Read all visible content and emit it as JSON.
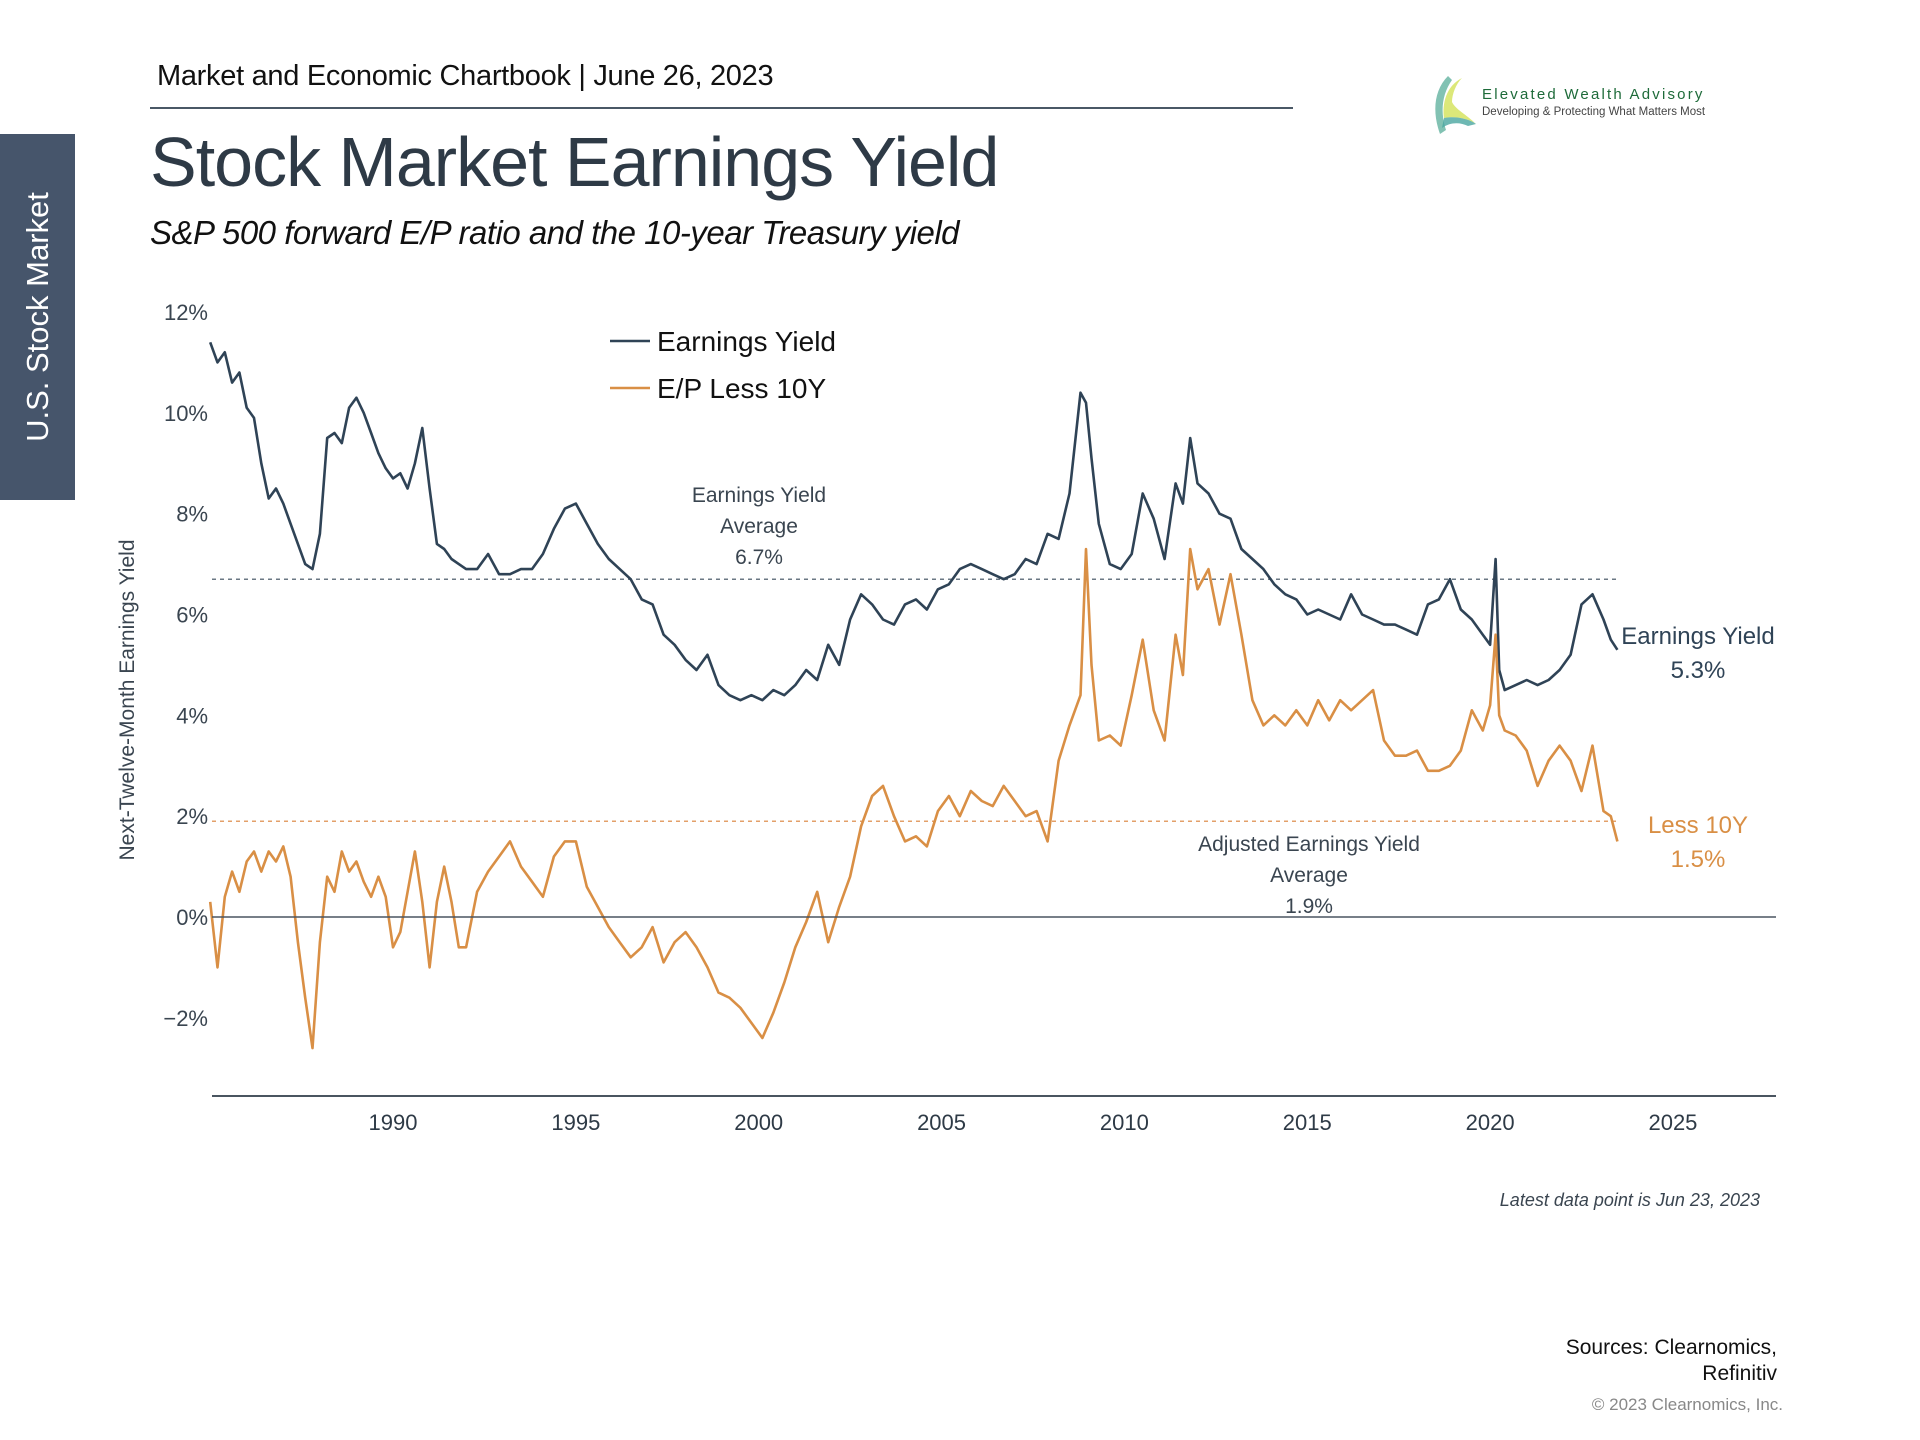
{
  "header": {
    "chartbook": "Market and Economic Chartbook | June 26, 2023",
    "title": "Stock Market Earnings Yield",
    "subtitle": "S&P 500 forward E/P ratio and the 10-year Treasury yield"
  },
  "section_tab": "U.S. Stock Market",
  "logo": {
    "name": "Elevated Wealth Advisory",
    "tagline": "Developing & Protecting What Matters Most"
  },
  "colors": {
    "earnings_yield": "#2f4356",
    "ep_less_10y": "#d98f45",
    "tab": "#46556b",
    "text": "#2e3a46"
  },
  "footer": {
    "note": "Latest data point is Jun 23, 2023",
    "sources_line1": "Sources: Clearnomics,",
    "sources_line2": "Refinitiv",
    "copyright": "© 2023 Clearnomics, Inc."
  },
  "chart_data": {
    "type": "line",
    "title": "Stock Market Earnings Yield",
    "xlabel": "",
    "ylabel": "Next-Twelve-Month Earnings Yield",
    "xlim": [
      1985,
      2027.8
    ],
    "ylim": [
      -3.5,
      12
    ],
    "x_ticks": [
      1990,
      1995,
      2000,
      2005,
      2010,
      2015,
      2020,
      2025
    ],
    "x_tick_labels": [
      "1990",
      "1995",
      "2000",
      "2005",
      "2010",
      "2015",
      "2020",
      "2025"
    ],
    "y_ticks": [
      -2,
      0,
      2,
      4,
      6,
      8,
      10,
      12
    ],
    "y_tick_labels": [
      "−2%",
      "0%",
      "2%",
      "4%",
      "6%",
      "8%",
      "10%",
      "12%"
    ],
    "grid": false,
    "legend": {
      "position": "top-left",
      "entries": [
        "Earnings Yield",
        "E/P Less 10Y"
      ]
    },
    "reference_lines": [
      {
        "name": "Earnings Yield Average",
        "value": 6.7,
        "label_lines": [
          "Earnings Yield",
          "Average",
          "6.7%"
        ]
      },
      {
        "name": "Adjusted Earnings Yield Average",
        "value": 1.9,
        "label_lines": [
          "Adjusted Earnings Yield",
          "Average",
          "1.9%"
        ]
      }
    ],
    "end_labels": [
      {
        "series": "Earnings Yield",
        "lines": [
          "Earnings Yield",
          "5.3%"
        ],
        "value": 5.3
      },
      {
        "series": "E/P Less 10Y",
        "lines": [
          "Less 10Y",
          "1.5%"
        ],
        "value": 1.5
      }
    ],
    "series": [
      {
        "name": "Earnings Yield",
        "x": [
          1985.0,
          1985.2,
          1985.4,
          1985.6,
          1985.8,
          1986.0,
          1986.2,
          1986.4,
          1986.6,
          1986.8,
          1987.0,
          1987.2,
          1987.4,
          1987.6,
          1987.8,
          1988.0,
          1988.2,
          1988.4,
          1988.6,
          1988.8,
          1989.0,
          1989.2,
          1989.4,
          1989.6,
          1989.8,
          1990.0,
          1990.2,
          1990.4,
          1990.6,
          1990.8,
          1991.0,
          1991.2,
          1991.4,
          1991.6,
          1991.8,
          1992.0,
          1992.3,
          1992.6,
          1992.9,
          1993.2,
          1993.5,
          1993.8,
          1994.1,
          1994.4,
          1994.7,
          1995.0,
          1995.3,
          1995.6,
          1995.9,
          1996.2,
          1996.5,
          1996.8,
          1997.1,
          1997.4,
          1997.7,
          1998.0,
          1998.3,
          1998.6,
          1998.9,
          1999.2,
          1999.5,
          1999.8,
          2000.1,
          2000.4,
          2000.7,
          2001.0,
          2001.3,
          2001.6,
          2001.9,
          2002.2,
          2002.5,
          2002.8,
          2003.1,
          2003.4,
          2003.7,
          2004.0,
          2004.3,
          2004.6,
          2004.9,
          2005.2,
          2005.5,
          2005.8,
          2006.1,
          2006.4,
          2006.7,
          2007.0,
          2007.3,
          2007.6,
          2007.9,
          2008.2,
          2008.5,
          2008.8,
          2008.95,
          2009.1,
          2009.3,
          2009.6,
          2009.9,
          2010.2,
          2010.5,
          2010.8,
          2011.1,
          2011.4,
          2011.6,
          2011.8,
          2012.0,
          2012.3,
          2012.6,
          2012.9,
          2013.2,
          2013.5,
          2013.8,
          2014.1,
          2014.4,
          2014.7,
          2015.0,
          2015.3,
          2015.6,
          2015.9,
          2016.2,
          2016.5,
          2016.8,
          2017.1,
          2017.4,
          2017.7,
          2018.0,
          2018.3,
          2018.6,
          2018.9,
          2019.2,
          2019.5,
          2019.8,
          2020.0,
          2020.15,
          2020.25,
          2020.4,
          2020.7,
          2021.0,
          2021.3,
          2021.6,
          2021.9,
          2022.2,
          2022.5,
          2022.8,
          2023.1,
          2023.3,
          2023.48
        ],
        "values": [
          11.4,
          11.0,
          11.2,
          10.6,
          10.8,
          10.1,
          9.9,
          9.0,
          8.3,
          8.5,
          8.2,
          7.8,
          7.4,
          7.0,
          6.9,
          7.6,
          9.5,
          9.6,
          9.4,
          10.1,
          10.3,
          10.0,
          9.6,
          9.2,
          8.9,
          8.7,
          8.8,
          8.5,
          9.0,
          9.7,
          8.5,
          7.4,
          7.3,
          7.1,
          7.0,
          6.9,
          6.9,
          7.2,
          6.8,
          6.8,
          6.9,
          6.9,
          7.2,
          7.7,
          8.1,
          8.2,
          7.8,
          7.4,
          7.1,
          6.9,
          6.7,
          6.3,
          6.2,
          5.6,
          5.4,
          5.1,
          4.9,
          5.2,
          4.6,
          4.4,
          4.3,
          4.4,
          4.3,
          4.5,
          4.4,
          4.6,
          4.9,
          4.7,
          5.4,
          5.0,
          5.9,
          6.4,
          6.2,
          5.9,
          5.8,
          6.2,
          6.3,
          6.1,
          6.5,
          6.6,
          6.9,
          7.0,
          6.9,
          6.8,
          6.7,
          6.8,
          7.1,
          7.0,
          7.6,
          7.5,
          8.4,
          10.4,
          10.2,
          9.1,
          7.8,
          7.0,
          6.9,
          7.2,
          8.4,
          7.9,
          7.1,
          8.6,
          8.2,
          9.5,
          8.6,
          8.4,
          8.0,
          7.9,
          7.3,
          7.1,
          6.9,
          6.6,
          6.4,
          6.3,
          6.0,
          6.1,
          6.0,
          5.9,
          6.4,
          6.0,
          5.9,
          5.8,
          5.8,
          5.7,
          5.6,
          6.2,
          6.3,
          6.7,
          6.1,
          5.9,
          5.6,
          5.4,
          7.1,
          4.9,
          4.5,
          4.6,
          4.7,
          4.6,
          4.7,
          4.9,
          5.2,
          6.2,
          6.4,
          5.9,
          5.5,
          5.3
        ]
      },
      {
        "name": "E/P Less 10Y",
        "x": [
          1985.0,
          1985.2,
          1985.4,
          1985.6,
          1985.8,
          1986.0,
          1986.2,
          1986.4,
          1986.6,
          1986.8,
          1987.0,
          1987.2,
          1987.4,
          1987.6,
          1987.8,
          1988.0,
          1988.2,
          1988.4,
          1988.6,
          1988.8,
          1989.0,
          1989.2,
          1989.4,
          1989.6,
          1989.8,
          1990.0,
          1990.2,
          1990.4,
          1990.6,
          1990.8,
          1991.0,
          1991.2,
          1991.4,
          1991.6,
          1991.8,
          1992.0,
          1992.3,
          1992.6,
          1992.9,
          1993.2,
          1993.5,
          1993.8,
          1994.1,
          1994.4,
          1994.7,
          1995.0,
          1995.3,
          1995.6,
          1995.9,
          1996.2,
          1996.5,
          1996.8,
          1997.1,
          1997.4,
          1997.7,
          1998.0,
          1998.3,
          1998.6,
          1998.9,
          1999.2,
          1999.5,
          1999.8,
          2000.1,
          2000.4,
          2000.7,
          2001.0,
          2001.3,
          2001.6,
          2001.9,
          2002.2,
          2002.5,
          2002.8,
          2003.1,
          2003.4,
          2003.7,
          2004.0,
          2004.3,
          2004.6,
          2004.9,
          2005.2,
          2005.5,
          2005.8,
          2006.1,
          2006.4,
          2006.7,
          2007.0,
          2007.3,
          2007.6,
          2007.9,
          2008.2,
          2008.5,
          2008.8,
          2008.95,
          2009.1,
          2009.3,
          2009.6,
          2009.9,
          2010.2,
          2010.5,
          2010.8,
          2011.1,
          2011.4,
          2011.6,
          2011.8,
          2012.0,
          2012.3,
          2012.6,
          2012.9,
          2013.2,
          2013.5,
          2013.8,
          2014.1,
          2014.4,
          2014.7,
          2015.0,
          2015.3,
          2015.6,
          2015.9,
          2016.2,
          2016.5,
          2016.8,
          2017.1,
          2017.4,
          2017.7,
          2018.0,
          2018.3,
          2018.6,
          2018.9,
          2019.2,
          2019.5,
          2019.8,
          2020.0,
          2020.15,
          2020.25,
          2020.4,
          2020.7,
          2021.0,
          2021.3,
          2021.6,
          2021.9,
          2022.2,
          2022.5,
          2022.8,
          2023.1,
          2023.3,
          2023.48
        ],
        "values": [
          0.3,
          -1.0,
          0.4,
          0.9,
          0.5,
          1.1,
          1.3,
          0.9,
          1.3,
          1.1,
          1.4,
          0.8,
          -0.5,
          -1.6,
          -2.6,
          -0.5,
          0.8,
          0.5,
          1.3,
          0.9,
          1.1,
          0.7,
          0.4,
          0.8,
          0.4,
          -0.6,
          -0.3,
          0.5,
          1.3,
          0.3,
          -1.0,
          0.3,
          1.0,
          0.3,
          -0.6,
          -0.6,
          0.5,
          0.9,
          1.2,
          1.5,
          1.0,
          0.7,
          0.4,
          1.2,
          1.5,
          1.5,
          0.6,
          0.2,
          -0.2,
          -0.5,
          -0.8,
          -0.6,
          -0.2,
          -0.9,
          -0.5,
          -0.3,
          -0.6,
          -1.0,
          -1.5,
          -1.6,
          -1.8,
          -2.1,
          -2.4,
          -1.9,
          -1.3,
          -0.6,
          -0.1,
          0.5,
          -0.5,
          0.2,
          0.8,
          1.8,
          2.4,
          2.6,
          2.0,
          1.5,
          1.6,
          1.4,
          2.1,
          2.4,
          2.0,
          2.5,
          2.3,
          2.2,
          2.6,
          2.3,
          2.0,
          2.1,
          1.5,
          3.1,
          3.8,
          4.4,
          7.3,
          5.0,
          3.5,
          3.6,
          3.4,
          4.4,
          5.5,
          4.1,
          3.5,
          5.6,
          4.8,
          7.3,
          6.5,
          6.9,
          5.8,
          6.8,
          5.6,
          4.3,
          3.8,
          4.0,
          3.8,
          4.1,
          3.8,
          4.3,
          3.9,
          4.3,
          4.1,
          4.3,
          4.5,
          3.5,
          3.2,
          3.2,
          3.3,
          2.9,
          2.9,
          3.0,
          3.3,
          4.1,
          3.7,
          4.2,
          5.6,
          4.0,
          3.7,
          3.6,
          3.3,
          2.6,
          3.1,
          3.4,
          3.1,
          2.5,
          3.4,
          2.1,
          2.0,
          1.5
        ]
      }
    ]
  }
}
